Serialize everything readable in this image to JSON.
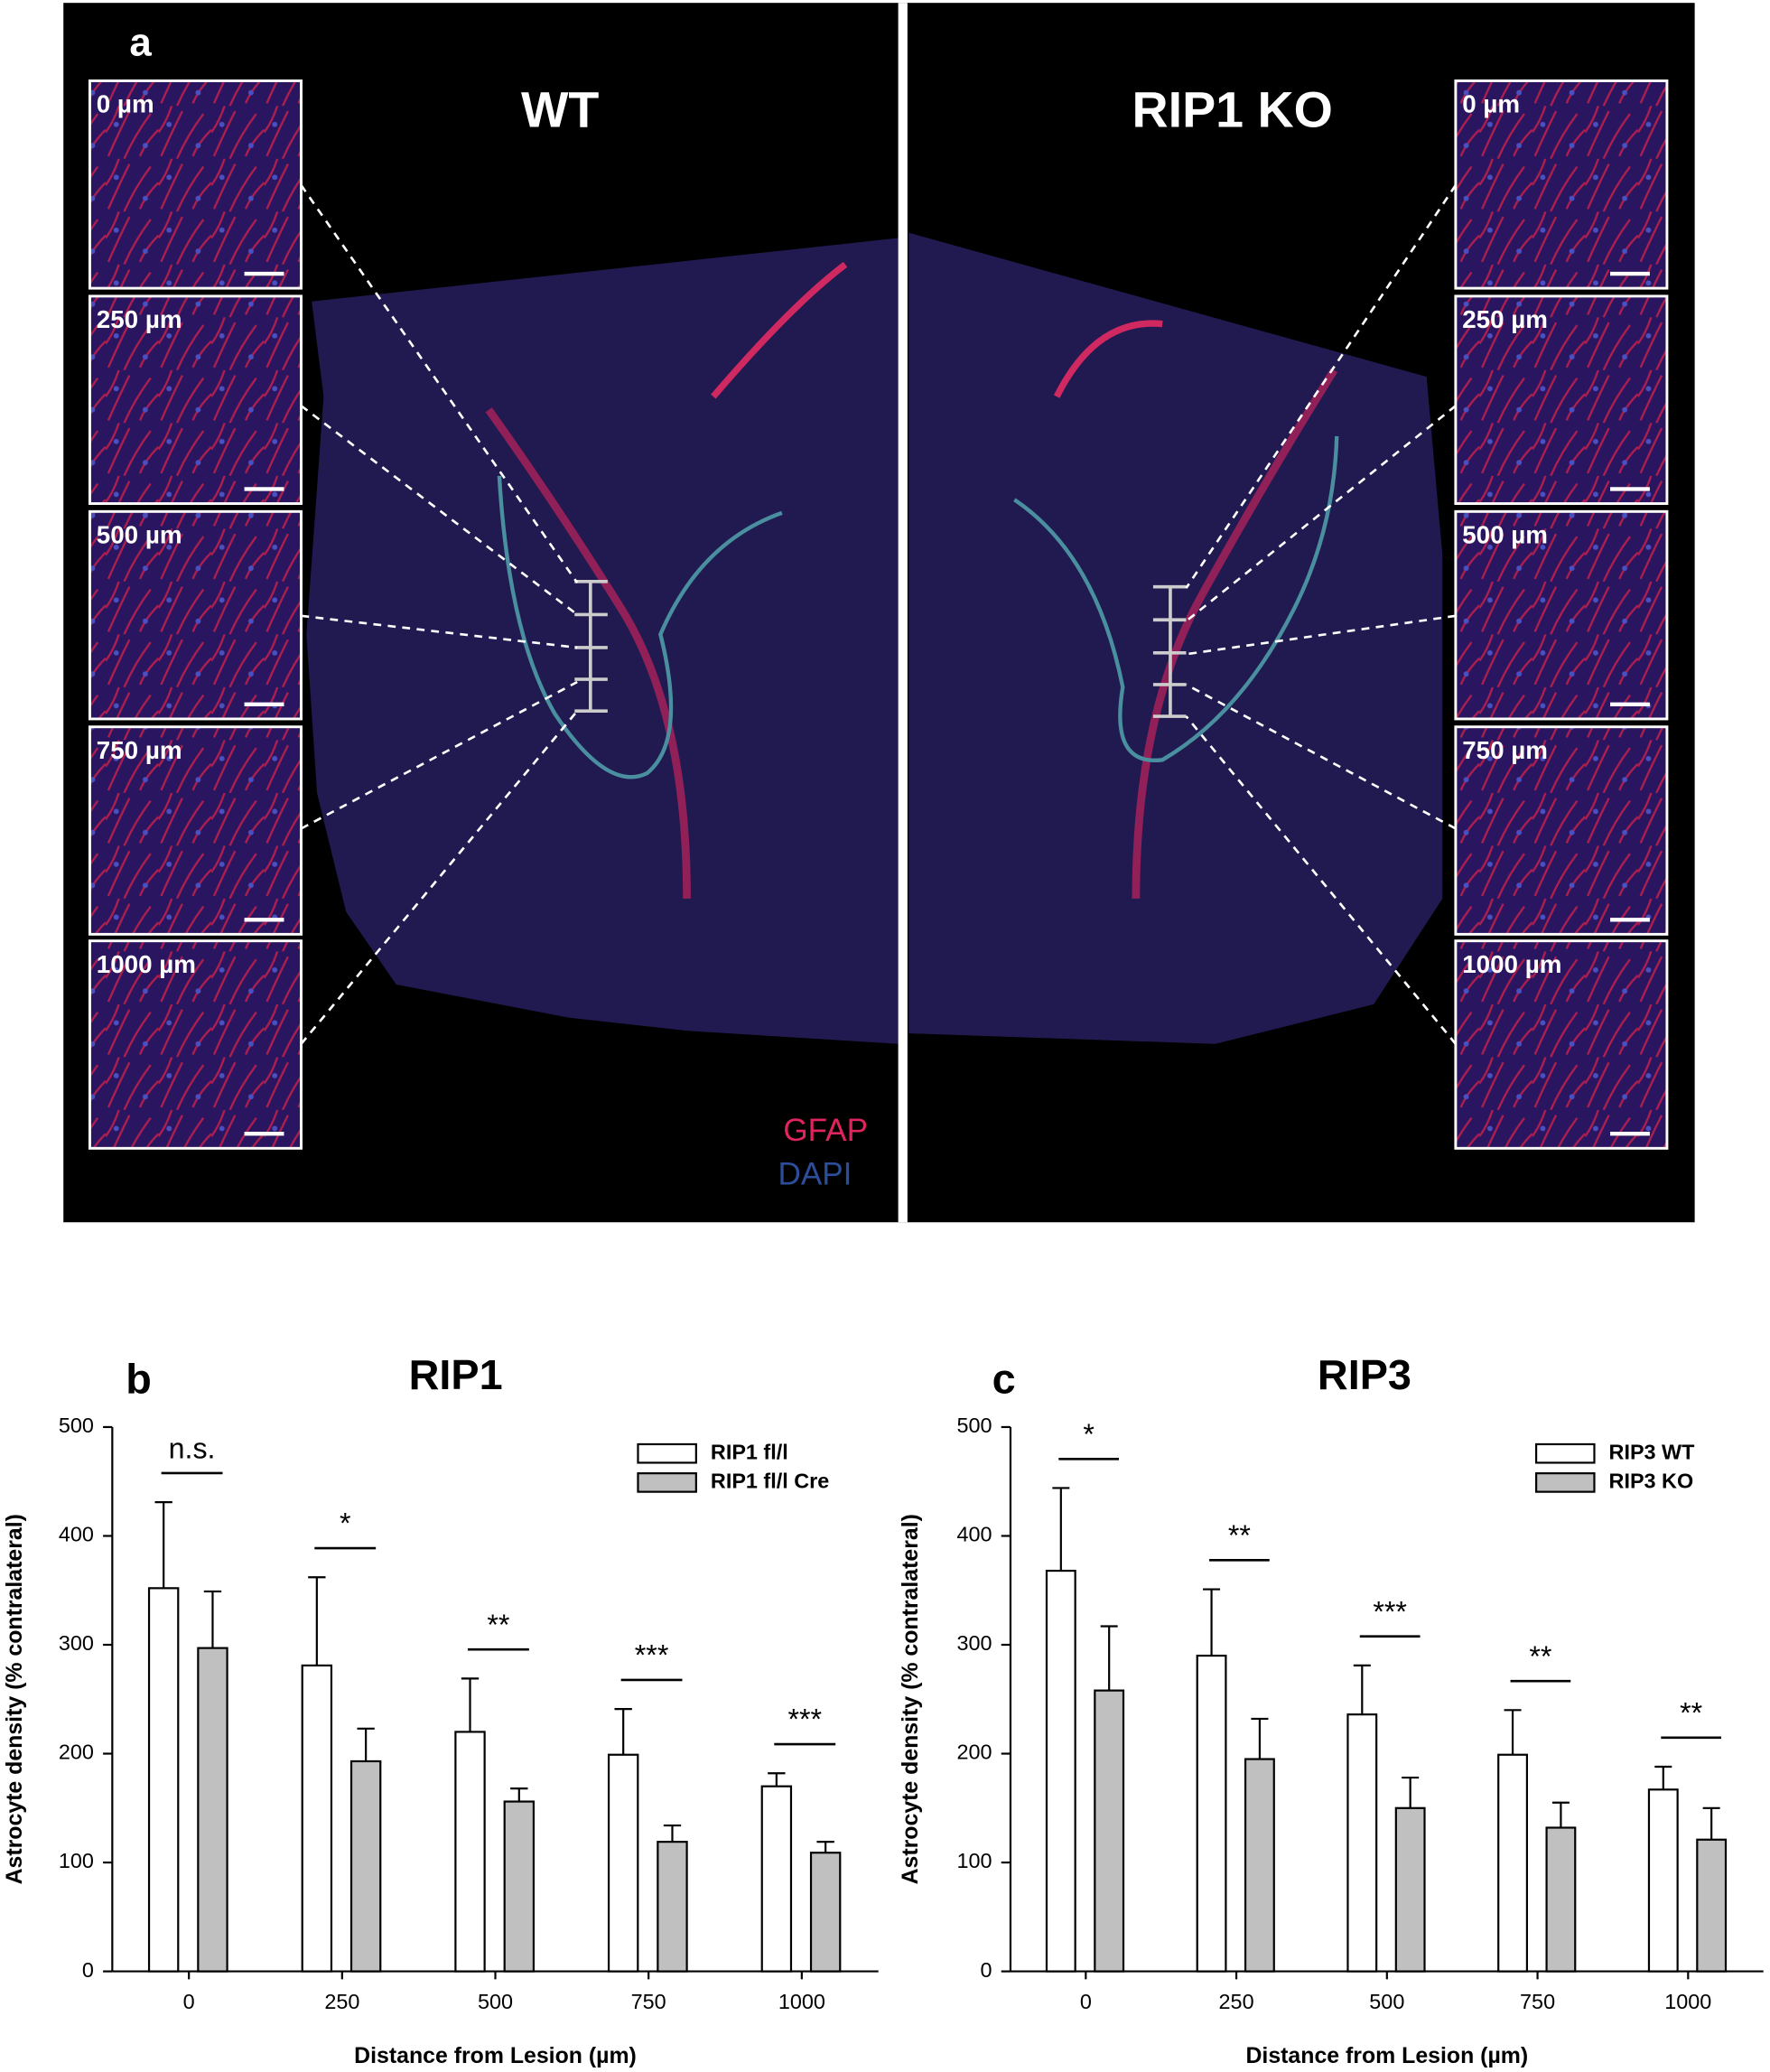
{
  "panel_a": {
    "label": "a",
    "left_title": "WT",
    "right_title": "RIP1 KO",
    "insets_left": [
      "0 µm",
      "250 µm",
      "500 µm",
      "750 µm",
      "1000 µm"
    ],
    "insets_right": [
      "0 µm",
      "250 µm",
      "500 µm",
      "750 µm",
      "1000 µm"
    ],
    "stain_labels": [
      "GFAP",
      "DAPI"
    ]
  },
  "chart_data": [
    {
      "type": "bar",
      "panel_label": "b",
      "title": "RIP1",
      "x_label": "Distance from Lesion (µm)",
      "y_label": "Astrocyte density (% contralateral)",
      "categories": [
        "0",
        "250",
        "500",
        "750",
        "1000"
      ],
      "series": [
        {
          "name": "RIP1 fl/l",
          "color": "#ffffff",
          "values": [
            352,
            281,
            220,
            199,
            170
          ],
          "errors": [
            79,
            81,
            49,
            42,
            12
          ]
        },
        {
          "name": "RIP1 fl/l Cre",
          "color": "#c0c0c0",
          "values": [
            297,
            193,
            156,
            119,
            109
          ],
          "errors": [
            52,
            30,
            12,
            15,
            10
          ]
        }
      ],
      "significance": [
        "n.s.",
        "*",
        "**",
        "***",
        "***"
      ],
      "ylim": [
        0,
        500
      ],
      "yticks": [
        0,
        100,
        200,
        300,
        400,
        500
      ],
      "legend": "top-right"
    },
    {
      "type": "bar",
      "panel_label": "c",
      "title": "RIP3",
      "x_label": "Distance from Lesion (µm)",
      "y_label": "Astrocyte density (% contralateral)",
      "categories": [
        "0",
        "250",
        "500",
        "750",
        "1000"
      ],
      "series": [
        {
          "name": "RIP3 WT",
          "color": "#ffffff",
          "values": [
            368,
            290,
            236,
            199,
            167
          ],
          "errors": [
            76,
            61,
            45,
            41,
            21
          ]
        },
        {
          "name": "RIP3 KO",
          "color": "#c0c0c0",
          "values": [
            258,
            195,
            150,
            132,
            121
          ],
          "errors": [
            59,
            37,
            28,
            23,
            29
          ]
        }
      ],
      "significance": [
        "*",
        "**",
        "***",
        "**",
        "**"
      ],
      "ylim": [
        0,
        500
      ],
      "yticks": [
        0,
        100,
        200,
        300,
        400,
        500
      ],
      "legend": "top-right"
    }
  ]
}
